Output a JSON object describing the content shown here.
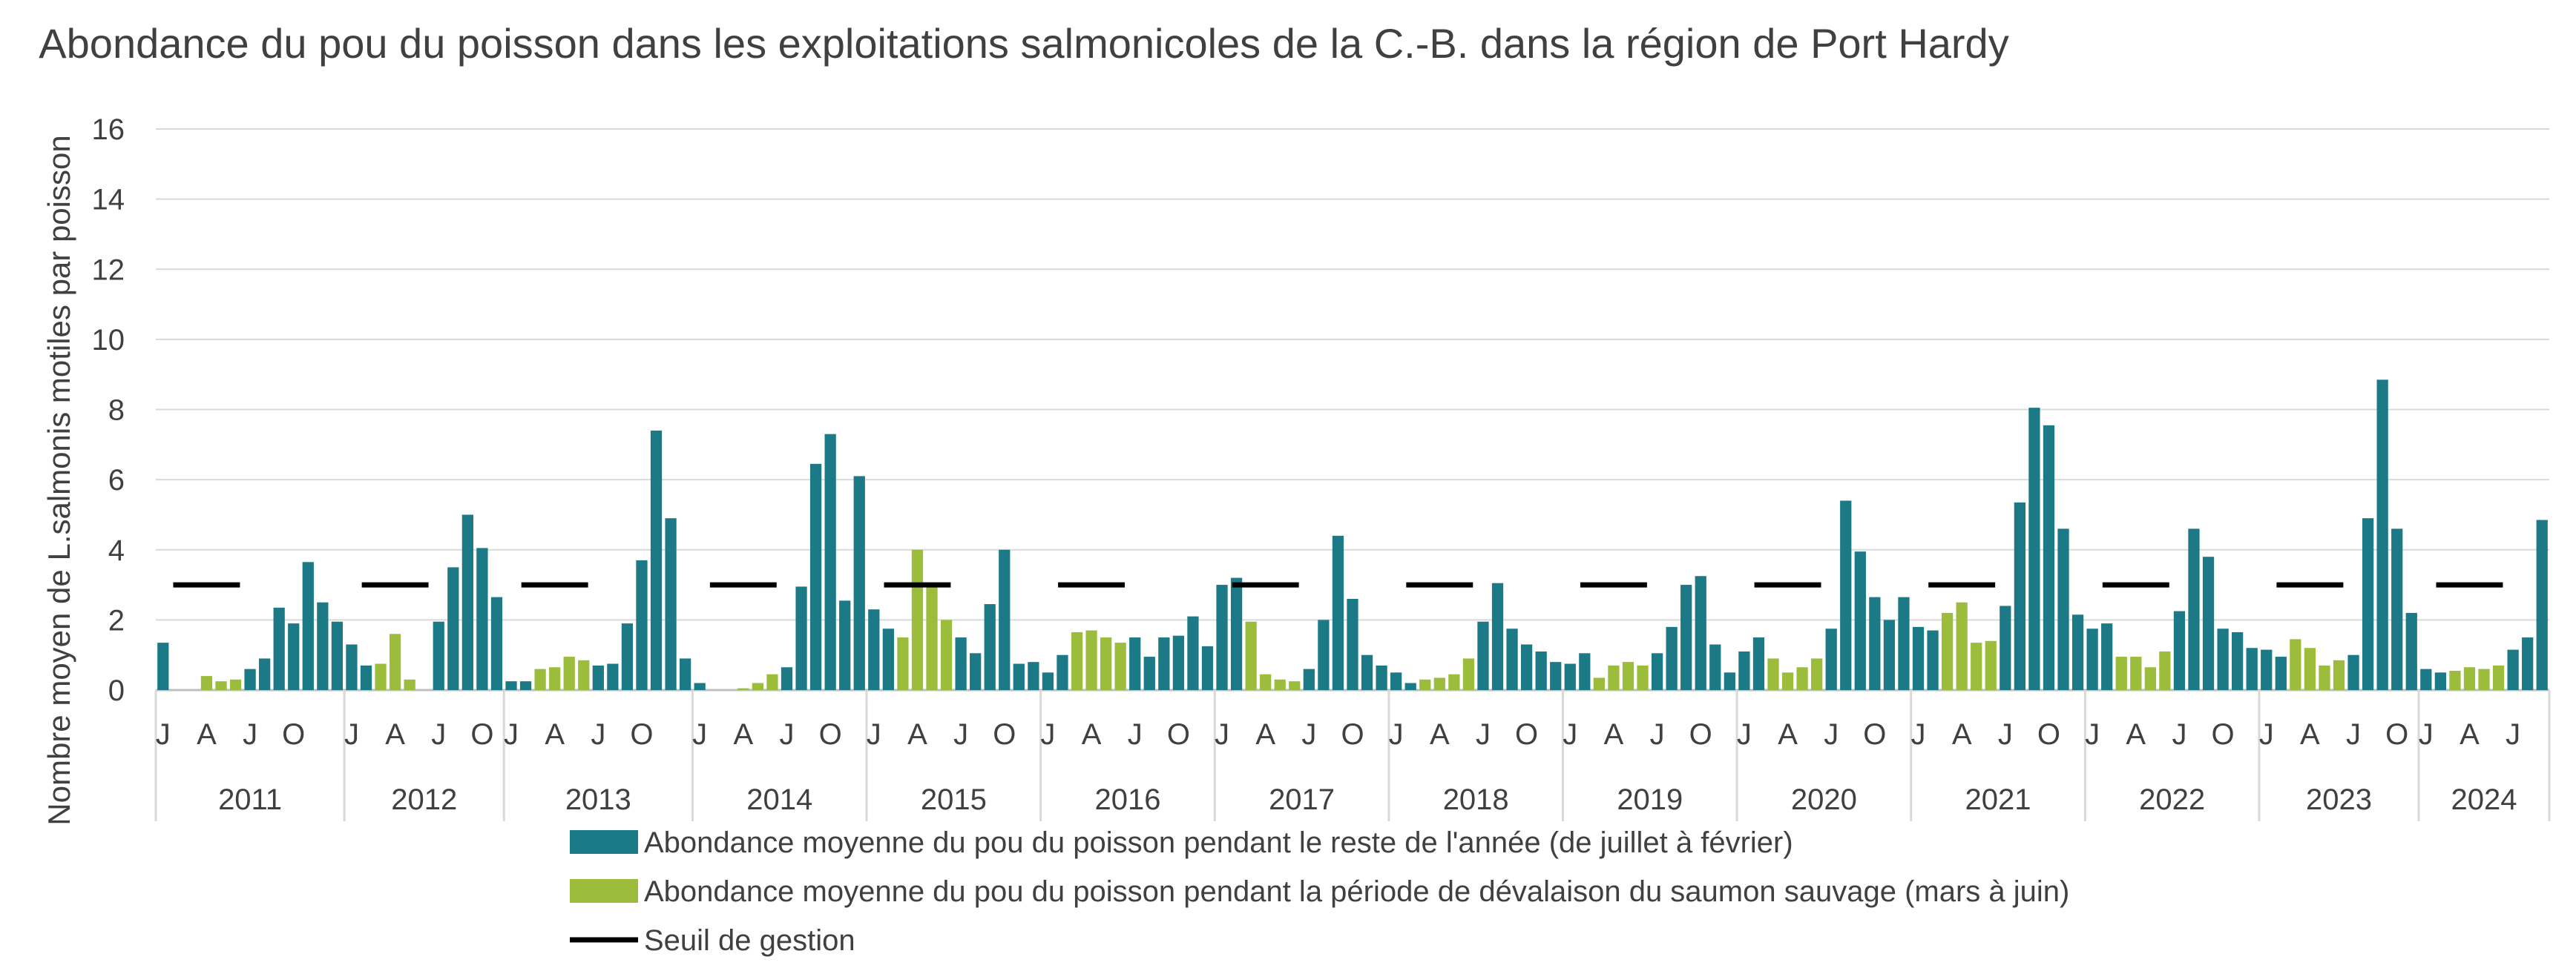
{
  "chart_data": {
    "type": "bar",
    "title": "Abondance du pou du poisson dans les exploitations salmonicoles de la C.-B. dans la région de Port Hardy",
    "xlabel": "",
    "ylabel": "Nombre moyen de L.salmonis motiles par poisson",
    "ylim": [
      0,
      16
    ],
    "yticks": [
      "0",
      "2",
      "4",
      "6",
      "8",
      "10",
      "12",
      "14",
      "16"
    ],
    "grid": true,
    "legend_position": "bottom",
    "colors": {
      "rest_of_year": "#1b7a85",
      "outmigration": "#9cbc3b",
      "threshold": "#000000",
      "grid": "#d9d9d9",
      "axis": "#bfbfbf"
    },
    "month_tick_letters": [
      "J",
      "A",
      "J",
      "O"
    ],
    "years": [
      {
        "year": "2011",
        "values": [
          1.35,
          0,
          0,
          0.4,
          0.25,
          0.3,
          0.6,
          0.9,
          2.35,
          1.9,
          3.65,
          2.5,
          1.95
        ]
      },
      {
        "year": "2012",
        "values": [
          1.3,
          0.7,
          0.75,
          1.6,
          0.3,
          0,
          1.95,
          3.5,
          5.0,
          4.05,
          2.65
        ]
      },
      {
        "year": "2013",
        "values": [
          0.25,
          0.25,
          0.6,
          0.65,
          0.95,
          0.85,
          0.7,
          0.75,
          1.9,
          3.7,
          7.4,
          4.9,
          0.9
        ]
      },
      {
        "year": "2014",
        "values": [
          0.2,
          0,
          0,
          0.05,
          0.2,
          0.45,
          0.65,
          2.95,
          6.45,
          7.3,
          2.55,
          6.1
        ]
      },
      {
        "year": "2015",
        "values": [
          2.3,
          1.75,
          1.5,
          4.0,
          2.95,
          2.0,
          1.5,
          1.05,
          2.45,
          4.0,
          0.75,
          0.8
        ]
      },
      {
        "year": "2016",
        "values": [
          0.5,
          1.0,
          1.65,
          1.7,
          1.5,
          1.35,
          1.5,
          0.95,
          1.5,
          1.55,
          2.1,
          1.25
        ]
      },
      {
        "year": "2017",
        "values": [
          3.0,
          3.2,
          1.95,
          0.45,
          0.3,
          0.25,
          0.6,
          2.0,
          4.4,
          2.6,
          1.0,
          0.7
        ]
      },
      {
        "year": "2018",
        "values": [
          0.5,
          0.2,
          0.3,
          0.35,
          0.45,
          0.9,
          1.95,
          3.05,
          1.75,
          1.3,
          1.1,
          0.8
        ]
      },
      {
        "year": "2019",
        "values": [
          0.75,
          1.05,
          0.35,
          0.7,
          0.8,
          0.7,
          1.05,
          1.8,
          3.0,
          3.25,
          1.3,
          0.5
        ]
      },
      {
        "year": "2020",
        "values": [
          1.1,
          1.5,
          0.9,
          0.5,
          0.65,
          0.9,
          1.75,
          5.4,
          3.95,
          2.65,
          2.0,
          2.65
        ]
      },
      {
        "year": "2021",
        "values": [
          1.8,
          1.7,
          2.2,
          2.5,
          1.35,
          1.4,
          2.4,
          5.35,
          8.05,
          7.55,
          4.6,
          2.15
        ]
      },
      {
        "year": "2022",
        "values": [
          1.75,
          1.9,
          0.95,
          0.95,
          0.65,
          1.1,
          2.25,
          4.6,
          3.8,
          1.75,
          1.65,
          1.2
        ]
      },
      {
        "year": "2023",
        "values": [
          1.15,
          0.95,
          1.45,
          1.2,
          0.7,
          0.85,
          1.0,
          4.9,
          8.85,
          4.6,
          2.2
        ]
      },
      {
        "year": "2024",
        "values": [
          0.6,
          0.5,
          0.55,
          0.65,
          0.6,
          0.7,
          1.15,
          1.5,
          4.85
        ]
      }
    ],
    "threshold": {
      "name": "Seuil de gestion",
      "value": 3
    },
    "series": [
      {
        "key": "rest_of_year",
        "name": "Abondance moyenne du pou du poisson pendant le reste de l'année (de juillet à février)"
      },
      {
        "key": "outmigration",
        "name": "Abondance moyenne du pou du poisson pendant la période de dévalaison du saumon sauvage (mars à juin)"
      },
      {
        "key": "threshold",
        "name": "Seuil de gestion"
      }
    ]
  }
}
